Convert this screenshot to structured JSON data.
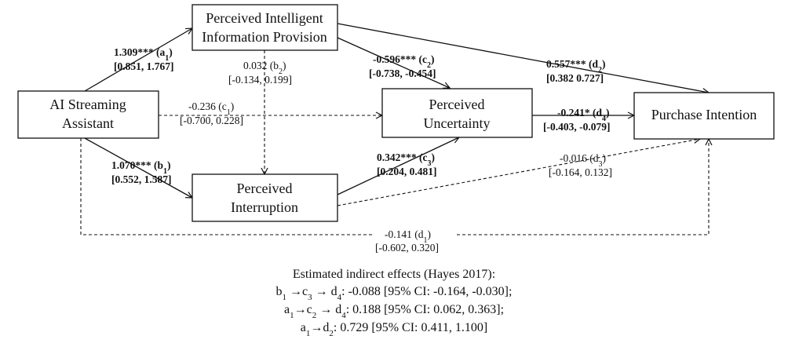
{
  "nodes": {
    "ai": "AI Streaming Assistant",
    "ai_l1": "AI Streaming",
    "ai_l2": "Assistant",
    "pip_l1": "Perceived Intelligent",
    "pip_l2": "Information Provision",
    "pu_l1": "Perceived",
    "pu_l2": "Uncertainty",
    "pi_l1": "Perceived",
    "pi_l2": "Interruption",
    "intent": "Purchase Intention"
  },
  "paths": {
    "a1": {
      "coef": "1.309***",
      "name": "a",
      "sub": "1",
      "ci": "[0.851, 1.767]",
      "significant": true
    },
    "b1": {
      "coef": "1.070***",
      "name": "b",
      "sub": "1",
      "ci": "[0.552, 1.587]",
      "significant": true
    },
    "b2": {
      "coef": "0.032",
      "name": "b",
      "sub": "2",
      "ci": "[-0.134, 0.199]",
      "significant": false
    },
    "c1": {
      "coef": "-0.236",
      "name": "c",
      "sub": "1",
      "ci": "[-0.700, 0.228]",
      "significant": false
    },
    "c2": {
      "coef": "-0.596***",
      "name": "c",
      "sub": "2",
      "ci": "[-0.738, -0.454]",
      "significant": true
    },
    "c3": {
      "coef": "0.342***",
      "name": "c",
      "sub": "3",
      "ci": "[0.204, 0.481]",
      "significant": true
    },
    "d1": {
      "coef": "-0.141",
      "name": "d",
      "sub": "1",
      "ci": "[-0.602, 0.320]",
      "significant": false
    },
    "d2": {
      "coef": "0.557***",
      "name": "d",
      "sub": "2",
      "ci": "[0.382 0.727]",
      "significant": true
    },
    "d3": {
      "coef": "-0.016",
      "name": "d",
      "sub": "3",
      "ci": "[-0.164, 0.132]",
      "significant": false
    },
    "d4": {
      "coef": "-0.241*",
      "name": "d",
      "sub": "4",
      "ci": "[-0.403, -0.079]",
      "significant": true
    }
  },
  "indirect": {
    "title": "Estimated indirect effects (Hayes 2017):",
    "rows": [
      {
        "path": [
          "b1",
          "c3",
          "d4"
        ],
        "value": "-0.088",
        "ci": "[95% CI: -0.164, -0.030];"
      },
      {
        "path": [
          "a1",
          "c2",
          "d4"
        ],
        "value": "0.188",
        "ci": "[95% CI: 0.062, 0.363];"
      },
      {
        "path": [
          "a1",
          "d2"
        ],
        "value": "0.729",
        "ci": "[95% CI: 0.411, 1.100]"
      }
    ]
  }
}
